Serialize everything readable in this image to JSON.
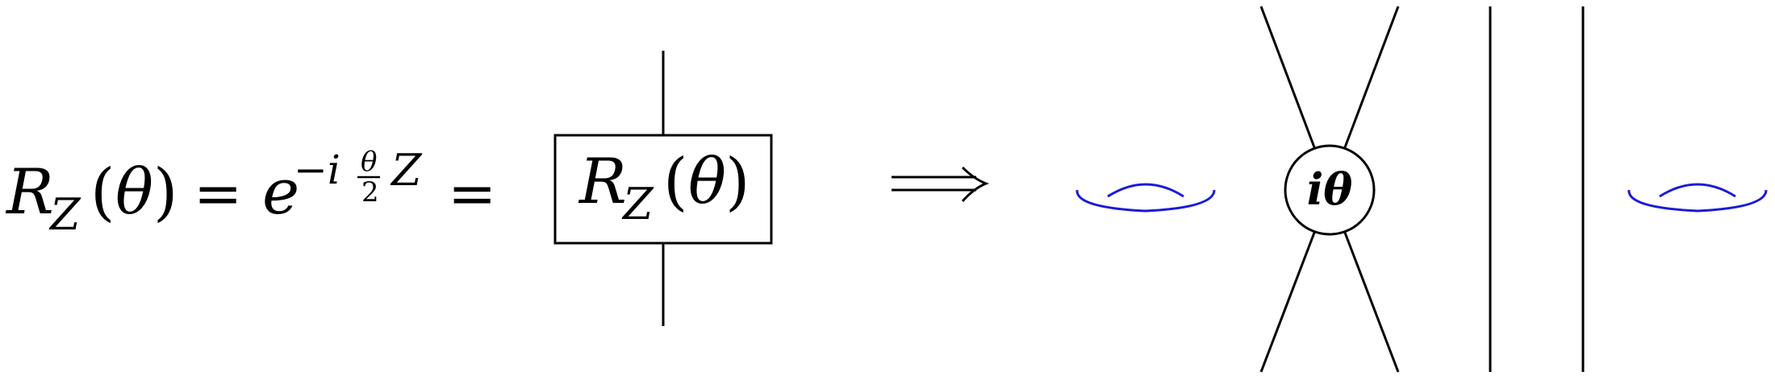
{
  "equation": {
    "lhs_R": "R",
    "lhs_sub": "Z",
    "lhs_paren_open": "(",
    "lhs_theta": "θ",
    "lhs_paren_close": ")",
    "equals_1": "=",
    "exp_base": "e",
    "exp_minus_i": "−i",
    "exp_frac_num": "θ",
    "exp_frac_den": "2",
    "exp_Z": "Z",
    "equals_2": "="
  },
  "gate": {
    "R": "R",
    "sub": "Z",
    "paren_open": "(",
    "theta": "θ",
    "paren_close": ")"
  },
  "implies": "⟹",
  "vertex": {
    "label": "iθ"
  },
  "colors": {
    "ink": "#000000",
    "loop": "#1a1adb"
  }
}
